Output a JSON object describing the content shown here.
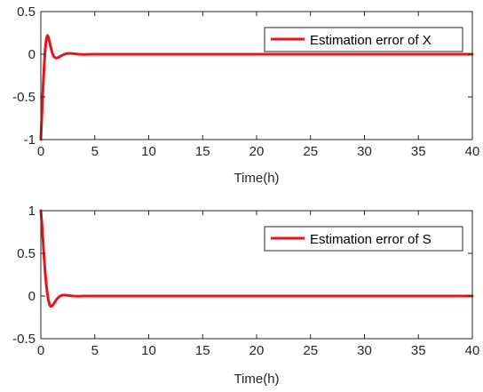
{
  "colors": {
    "series": "#e8141c",
    "axis": "#262626",
    "background": "#ffffff"
  },
  "chart_data": [
    {
      "type": "line",
      "xlabel": "Time(h)",
      "ylabel": "",
      "xlim": [
        0,
        40
      ],
      "ylim": [
        -1,
        0.5
      ],
      "xticks": [
        "0",
        "5",
        "10",
        "15",
        "20",
        "25",
        "30",
        "35",
        "40"
      ],
      "yticks": [
        "0.5",
        "0",
        "-0.5",
        "-1"
      ],
      "legend": "top-right",
      "grid": false,
      "series": [
        {
          "name": "Estimation error of X",
          "x": [
            0,
            0.1,
            0.2,
            0.3,
            0.4,
            0.5,
            0.6,
            0.7,
            0.8,
            0.9,
            1.0,
            1.2,
            1.4,
            1.6,
            1.8,
            2.0,
            2.3,
            2.6,
            3.0,
            3.5,
            4.0,
            5.0,
            40
          ],
          "y": [
            -1.0,
            -0.7,
            -0.4,
            -0.15,
            0.05,
            0.17,
            0.22,
            0.2,
            0.15,
            0.09,
            0.04,
            -0.03,
            -0.045,
            -0.04,
            -0.025,
            -0.01,
            0.005,
            0.01,
            0.006,
            0.0,
            -0.003,
            0.0,
            0.0
          ]
        }
      ]
    },
    {
      "type": "line",
      "xlabel": "Time(h)",
      "ylabel": "",
      "xlim": [
        0,
        40
      ],
      "ylim": [
        -0.5,
        1
      ],
      "xticks": [
        "0",
        "5",
        "10",
        "15",
        "20",
        "25",
        "30",
        "35",
        "40"
      ],
      "yticks": [
        "1",
        "0.5",
        "0",
        "-0.5"
      ],
      "legend": "top-right",
      "grid": false,
      "series": [
        {
          "name": "Estimation error of S",
          "x": [
            0,
            0.1,
            0.2,
            0.3,
            0.4,
            0.5,
            0.6,
            0.7,
            0.8,
            0.9,
            1.0,
            1.1,
            1.2,
            1.4,
            1.6,
            1.8,
            2.0,
            2.3,
            2.6,
            3.0,
            3.5,
            4.0,
            5.0,
            40
          ],
          "y": [
            1.0,
            0.85,
            0.65,
            0.45,
            0.28,
            0.14,
            0.03,
            -0.05,
            -0.1,
            -0.12,
            -0.12,
            -0.11,
            -0.09,
            -0.05,
            -0.02,
            0.0,
            0.01,
            0.01,
            0.005,
            0.0,
            -0.002,
            0.0,
            0.0,
            0.0
          ]
        }
      ]
    }
  ]
}
